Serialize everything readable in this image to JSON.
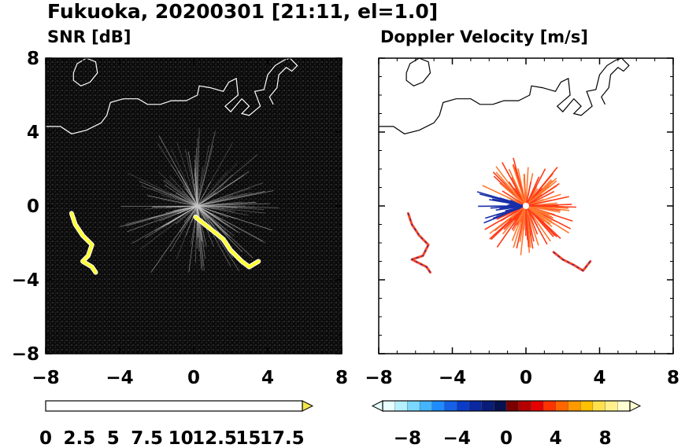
{
  "title": "Fukuoka, 20200301 [21:11, el=1.0]",
  "panels": [
    {
      "subtitle": "SNR [dB]"
    },
    {
      "subtitle": "Doppler Velocity [m/s]"
    }
  ],
  "colorbars": [
    {
      "tick_labels": [
        "0",
        "2.5",
        "5",
        "7.5",
        "10",
        "12.5",
        "15",
        "17.5"
      ],
      "ticks": [
        0,
        2.5,
        5,
        7.5,
        10,
        12.5,
        15,
        17.5
      ],
      "range": [
        0,
        19
      ],
      "extend": "max"
    },
    {
      "tick_labels": [
        "−8",
        "−4",
        "0",
        "4",
        "8"
      ],
      "ticks": [
        -8,
        -4,
        0,
        4,
        8
      ],
      "range": [
        -10,
        10
      ],
      "extend": "both"
    }
  ],
  "chart_data": [
    {
      "type": "heatmap",
      "title": "SNR [dB]",
      "xlabel": "",
      "ylabel": "",
      "xlim": [
        -8,
        8
      ],
      "ylim": [
        -8,
        8
      ],
      "x_ticks": [
        -8,
        -4,
        0,
        4,
        8
      ],
      "y_ticks": [
        -8,
        -4,
        0,
        4,
        8
      ],
      "x_tick_labels": [
        "−8",
        "−4",
        "0",
        "4",
        "8"
      ],
      "y_tick_labels": [
        "8",
        "4",
        "0",
        "−4",
        "−8"
      ],
      "background": "#0a0a0a",
      "radar_center": [
        0.2,
        0.0
      ],
      "echo_color": "#ffff33",
      "echoes": [
        {
          "name": "echo-southeast",
          "points": [
            [
              0.1,
              -0.6
            ],
            [
              0.6,
              -1.0
            ],
            [
              1.1,
              -1.4
            ],
            [
              1.6,
              -1.8
            ],
            [
              2.0,
              -2.4
            ],
            [
              2.6,
              -3.0
            ],
            [
              3.0,
              -3.3
            ],
            [
              3.5,
              -3.0
            ]
          ]
        },
        {
          "name": "echo-west",
          "points": [
            [
              -6.6,
              -0.4
            ],
            [
              -6.4,
              -1.0
            ],
            [
              -6.0,
              -1.6
            ],
            [
              -5.5,
              -2.1
            ],
            [
              -5.7,
              -2.7
            ],
            [
              -6.0,
              -3.0
            ],
            [
              -5.5,
              -3.3
            ],
            [
              -5.3,
              -3.6
            ]
          ]
        }
      ],
      "coastline_color": "#ffffff"
    },
    {
      "type": "heatmap",
      "title": "Doppler Velocity [m/s]",
      "xlabel": "",
      "ylabel": "",
      "xlim": [
        -8,
        8
      ],
      "ylim": [
        -8,
        8
      ],
      "x_ticks": [
        -8,
        -4,
        0,
        4,
        8
      ],
      "y_ticks": [
        -8,
        -4,
        0,
        4,
        8
      ],
      "x_tick_labels": [
        "−8",
        "−4",
        "0",
        "4",
        "8"
      ],
      "background": "#ffffff",
      "radar_center": [
        0.0,
        0.0
      ],
      "echo_color": "#ff4422",
      "negative_color": "#1a2fa8",
      "echoes": [
        {
          "name": "echo-southeast",
          "points": [
            [
              1.5,
              -2.5
            ],
            [
              2.0,
              -2.9
            ],
            [
              2.6,
              -3.2
            ],
            [
              3.1,
              -3.5
            ],
            [
              3.5,
              -3.0
            ]
          ]
        },
        {
          "name": "echo-west",
          "points": [
            [
              -6.4,
              -0.4
            ],
            [
              -6.2,
              -1.0
            ],
            [
              -5.8,
              -1.6
            ],
            [
              -5.3,
              -2.1
            ],
            [
              -5.6,
              -2.7
            ],
            [
              -6.2,
              -2.9
            ],
            [
              -5.4,
              -3.3
            ],
            [
              -5.2,
              -3.6
            ]
          ]
        }
      ],
      "coastline_color": "#000000"
    }
  ]
}
